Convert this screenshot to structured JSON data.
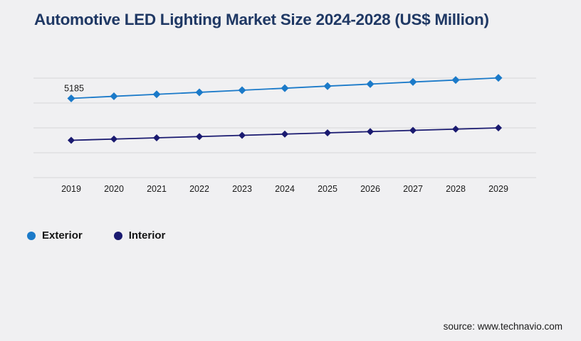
{
  "title": "Automotive LED Lighting Market Size 2024-2028 (US$ Million)",
  "source": "source: www.technavio.com",
  "colors": {
    "background": "#f0f0f2",
    "title": "#1f3864",
    "gridline": "#d6d6d8",
    "tick_label": "#1a1a1a",
    "exterior": "#1b7ac9",
    "interior": "#1a1a70"
  },
  "legend": {
    "items": [
      {
        "label": "Exterior",
        "color": "#1b7ac9"
      },
      {
        "label": "Interior",
        "color": "#1a1a70"
      }
    ],
    "position": "bottom-left"
  },
  "chart_data": {
    "type": "line",
    "title": "Automotive LED Lighting Market Size 2024-2028 (US$ Million)",
    "categories": [
      "2019",
      "2020",
      "2021",
      "2022",
      "2023",
      "2024",
      "2025",
      "2026",
      "2027",
      "2028",
      "2029"
    ],
    "series": [
      {
        "name": "Exterior",
        "color": "#1b7ac9",
        "marker": "diamond",
        "values": [
          5185,
          5270,
          5350,
          5430,
          5515,
          5595,
          5680,
          5760,
          5845,
          5925,
          6010
        ],
        "point_labels": {
          "0": "5185"
        }
      },
      {
        "name": "Interior",
        "color": "#1a1a70",
        "marker": "diamond",
        "values": [
          3500,
          3550,
          3600,
          3650,
          3700,
          3750,
          3800,
          3850,
          3900,
          3950,
          4000
        ]
      }
    ],
    "xlabel": "",
    "ylabel": "",
    "ylim": [
      2000,
      7000
    ],
    "gridlines": {
      "values": [
        2000,
        3000,
        4000,
        5000,
        6000
      ],
      "color": "#d6d6d8",
      "horizontal": true
    },
    "y_axis_labels_visible": false,
    "legend_position": "bottom-left"
  }
}
